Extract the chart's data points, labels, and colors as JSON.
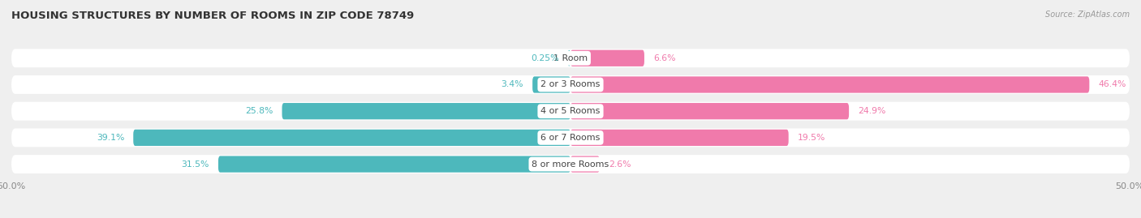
{
  "title": "HOUSING STRUCTURES BY NUMBER OF ROOMS IN ZIP CODE 78749",
  "source": "Source: ZipAtlas.com",
  "categories": [
    "1 Room",
    "2 or 3 Rooms",
    "4 or 5 Rooms",
    "6 or 7 Rooms",
    "8 or more Rooms"
  ],
  "owner_pct": [
    0.25,
    3.4,
    25.8,
    39.1,
    31.5
  ],
  "renter_pct": [
    6.6,
    46.4,
    24.9,
    19.5,
    2.6
  ],
  "owner_color": "#4db8bc",
  "renter_color": "#f07aab",
  "bg_color": "#efefef",
  "row_bg_color": "#ffffff",
  "axis_limit": 50.0,
  "bar_height": 0.62,
  "title_fontsize": 9.5,
  "label_fontsize": 8.0,
  "value_fontsize": 7.8,
  "legend_fontsize": 8.0
}
